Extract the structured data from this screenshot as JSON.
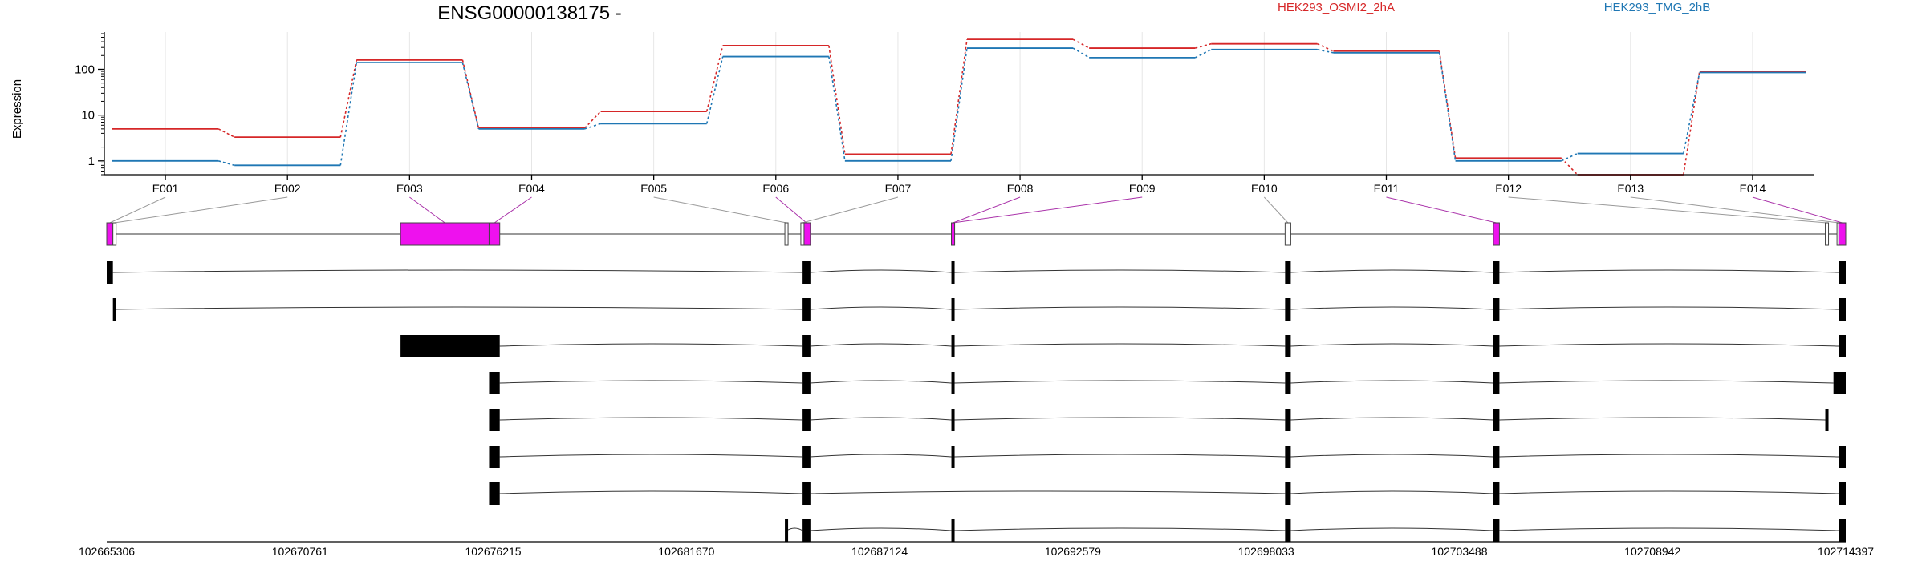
{
  "chart_data": {
    "type": "line",
    "title": "ENSG00000138175 -",
    "ylabel": "Expression",
    "yscale": "log",
    "ylim": [
      0.5,
      600
    ],
    "yticks": [
      1,
      10,
      100
    ],
    "grid": true,
    "legend_placement": "top-right",
    "categories": [
      "E001",
      "E002",
      "E003",
      "E004",
      "E005",
      "E006",
      "E007",
      "E008",
      "E009",
      "E010",
      "E011",
      "E012",
      "E013",
      "E014"
    ],
    "series": [
      {
        "name": "HEK293_OSMI2_2hA",
        "color": "#d62728",
        "values": [
          5,
          3.3,
          160,
          5.2,
          12,
          330,
          1.4,
          450,
          290,
          360,
          250,
          1.15,
          0.5,
          90
        ]
      },
      {
        "name": "HEK293_TMG_2hB",
        "color": "#1f77b4",
        "values": [
          1,
          0.8,
          140,
          5.0,
          6.5,
          190,
          1.0,
          290,
          180,
          270,
          230,
          1.0,
          1.45,
          85
        ]
      }
    ],
    "genomic_coordinates": [
      "102665306",
      "102670761",
      "102676215",
      "102681670",
      "102687124",
      "102692579",
      "102698033",
      "102703488",
      "102708942",
      "102714397"
    ],
    "gene_model": {
      "fill_color": "#ee11ee",
      "exons": [
        {
          "id": "E001",
          "start": 102665306,
          "end": 102665480,
          "fill": "#ee11ee",
          "connector": "#999999"
        },
        {
          "id": "E002",
          "start": 102665480,
          "end": 102665500,
          "fill": "#ffffff",
          "connector": "#999999"
        },
        {
          "id": "E003",
          "start": 102673600,
          "end": 102676100,
          "fill": "#ee11ee",
          "connector": "#aa33aa"
        },
        {
          "id": "E004",
          "start": 102676100,
          "end": 102676400,
          "fill": "#ee11ee",
          "connector": "#aa33aa"
        },
        {
          "id": "E005",
          "start": 102684450,
          "end": 102684530,
          "fill": "#ffffff",
          "connector": "#999999"
        },
        {
          "id": "E006",
          "start": 102684950,
          "end": 102685170,
          "fill": "#ee11ee",
          "connector": "#aa33aa"
        },
        {
          "id": "E007",
          "start": 102684900,
          "end": 102684950,
          "fill": "#ffffff",
          "connector": "#999999"
        },
        {
          "id": "E008",
          "start": 102689150,
          "end": 102689230,
          "fill": "#ee11ee",
          "connector": "#aa33aa"
        },
        {
          "id": "E009",
          "start": 102689150,
          "end": 102689230,
          "fill": "#ee11ee",
          "connector": "#aa33aa"
        },
        {
          "id": "E010",
          "start": 102698570,
          "end": 102698730,
          "fill": "#ffffff",
          "connector": "#999999"
        },
        {
          "id": "E011",
          "start": 102704450,
          "end": 102704620,
          "fill": "#ee11ee",
          "connector": "#aa33aa"
        },
        {
          "id": "E012",
          "start": 102713820,
          "end": 102713900,
          "fill": "#ffffff",
          "connector": "#999999"
        },
        {
          "id": "E013",
          "start": 102714150,
          "end": 102714200,
          "fill": "#ffffff",
          "connector": "#999999"
        },
        {
          "id": "E014",
          "start": 102714200,
          "end": 102714397,
          "fill": "#ee11ee",
          "connector": "#aa33aa"
        }
      ]
    },
    "transcripts": [
      {
        "span": [
          102665306,
          102714397
        ],
        "exons": [
          [
            102665306,
            102665480
          ],
          [
            102684950,
            102685170
          ],
          [
            102689150,
            102689230
          ],
          [
            102698570,
            102698730
          ],
          [
            102704450,
            102704620
          ],
          [
            102714200,
            102714397
          ]
        ]
      },
      {
        "span": [
          102665480,
          102714397
        ],
        "exons": [
          [
            102665480,
            102665530
          ],
          [
            102684950,
            102685170
          ],
          [
            102689150,
            102689230
          ],
          [
            102698570,
            102698730
          ],
          [
            102704450,
            102704620
          ],
          [
            102714200,
            102714397
          ]
        ]
      },
      {
        "span": [
          102673600,
          102714397
        ],
        "exons": [
          [
            102673600,
            102676400
          ],
          [
            102684950,
            102685170
          ],
          [
            102689150,
            102689230
          ],
          [
            102698570,
            102698730
          ],
          [
            102704450,
            102704620
          ],
          [
            102714200,
            102714397
          ]
        ]
      },
      {
        "span": [
          102676100,
          102714397
        ],
        "exons": [
          [
            102676100,
            102676400
          ],
          [
            102684950,
            102685170
          ],
          [
            102689150,
            102689230
          ],
          [
            102698570,
            102698730
          ],
          [
            102704450,
            102704620
          ],
          [
            102714050,
            102714397
          ]
        ]
      },
      {
        "span": [
          102676100,
          102713900
        ],
        "exons": [
          [
            102676100,
            102676400
          ],
          [
            102684950,
            102685170
          ],
          [
            102689150,
            102689230
          ],
          [
            102698570,
            102698730
          ],
          [
            102704450,
            102704620
          ],
          [
            102713820,
            102713900
          ]
        ]
      },
      {
        "span": [
          102676100,
          102714397
        ],
        "exons": [
          [
            102676100,
            102676400
          ],
          [
            102684950,
            102685170
          ],
          [
            102689150,
            102689230
          ],
          [
            102698570,
            102698730
          ],
          [
            102704450,
            102704620
          ],
          [
            102714200,
            102714397
          ]
        ]
      },
      {
        "span": [
          102676100,
          102714397
        ],
        "exons": [
          [
            102676100,
            102676400
          ],
          [
            102684950,
            102685170
          ],
          [
            102698570,
            102698730
          ],
          [
            102704450,
            102704620
          ],
          [
            102714200,
            102714397
          ]
        ]
      },
      {
        "span": [
          102684450,
          102714397
        ],
        "exons": [
          [
            102684450,
            102684500
          ],
          [
            102684950,
            102685170
          ],
          [
            102689150,
            102689230
          ],
          [
            102698570,
            102698730
          ],
          [
            102704450,
            102704620
          ],
          [
            102714200,
            102714397
          ]
        ]
      }
    ]
  }
}
